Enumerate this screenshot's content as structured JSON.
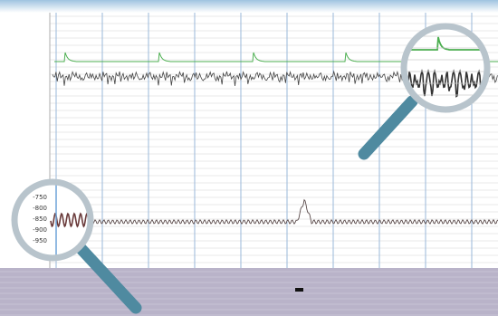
{
  "lower_axis_labels": [
    "-750",
    "-800",
    "-850",
    "-900",
    "-950"
  ]
}
